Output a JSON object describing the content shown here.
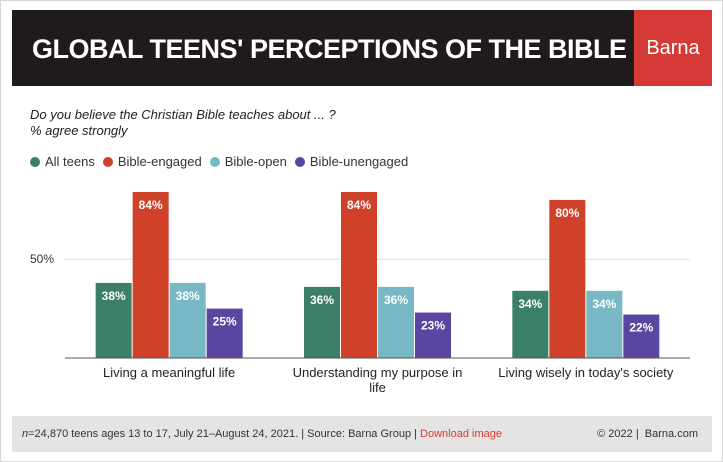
{
  "header": {
    "title": "GLOBAL TEENS' PERCEPTIONS OF THE BIBLE",
    "brand": "Barna"
  },
  "question": "Do you believe the Christian Bible teaches about ... ?",
  "subtitle": "% agree strongly",
  "chart_data": {
    "type": "bar",
    "categories": [
      [
        "Living a meaningful life"
      ],
      [
        "Understanding my purpose in",
        "life"
      ],
      [
        "Living wisely in today's society"
      ]
    ],
    "series": [
      {
        "name": "All teens",
        "color": "#3b7f68",
        "values": [
          38,
          36,
          34
        ],
        "labels": [
          "38%",
          "36%",
          "34%"
        ]
      },
      {
        "name": "Bible-engaged",
        "color": "#cf4128",
        "values": [
          84,
          84,
          80
        ],
        "labels": [
          "84%",
          "84%",
          "80%"
        ]
      },
      {
        "name": "Bible-open",
        "color": "#77b8c4",
        "values": [
          38,
          36,
          34
        ],
        "labels": [
          "38%",
          "36%",
          "34%"
        ]
      },
      {
        "name": "Bible-unengaged",
        "color": "#5a45a0",
        "values": [
          25,
          23,
          22
        ],
        "labels": [
          "25%",
          "23%",
          "22%"
        ]
      }
    ],
    "ylim": [
      0,
      84
    ],
    "yticks": [
      {
        "value": 50,
        "label": "50%"
      }
    ],
    "grid": true,
    "legend_position": "top-left"
  },
  "footer": {
    "n_label": "n",
    "note": "=24,870 teens ages 13 to 17, July 21–August 24, 2021. | Source: Barna Group | ",
    "download": "Download image",
    "copyright": "© 2022 |  Barna.com"
  }
}
